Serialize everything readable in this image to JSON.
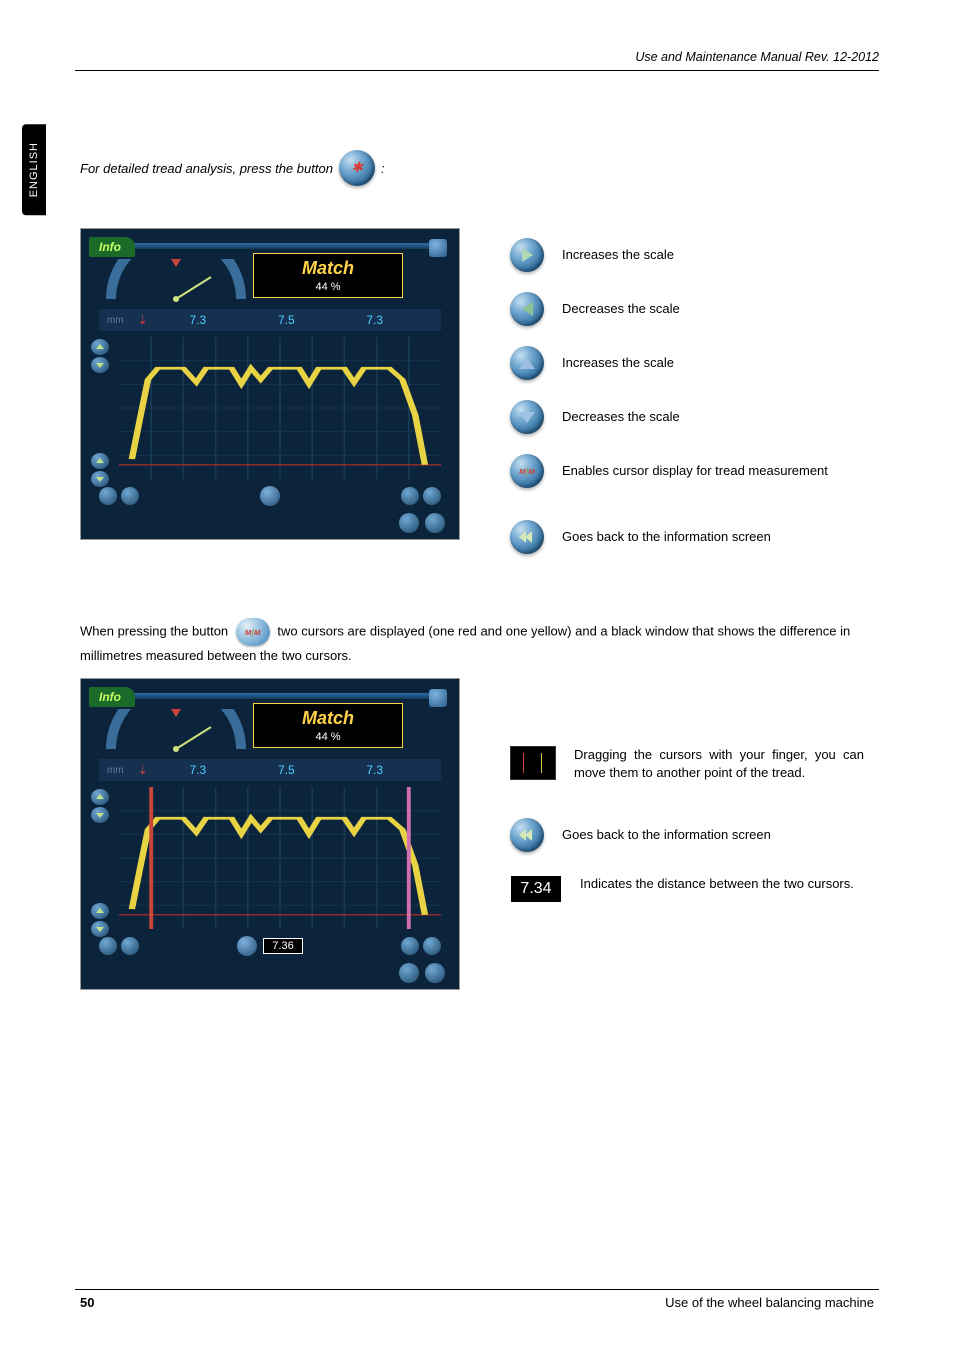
{
  "header": {
    "title": "Use and Maintenance Manual Rev. 12-2012"
  },
  "lang_tab": "ENGLISH",
  "intro": {
    "prefix": "For detailed tread analysis, press the button",
    "suffix": ":"
  },
  "screenshots": {
    "info_tab": "Info",
    "match_label": "Match",
    "match_value": "44 %",
    "mm_label": "mm",
    "measurements": [
      "7.3",
      "7.5",
      "7.3"
    ],
    "cursor_distance": "7.36",
    "chart": {
      "type": "line",
      "background": "#0c243b",
      "grid_color": "#173a57",
      "y_red_line": 0.1,
      "tread_series": {
        "color": "#e8d344",
        "width": 2,
        "points": [
          [
            0.04,
            0.86
          ],
          [
            0.07,
            0.52
          ],
          [
            0.09,
            0.3
          ],
          [
            0.12,
            0.22
          ],
          [
            0.2,
            0.22
          ],
          [
            0.24,
            0.32
          ],
          [
            0.27,
            0.22
          ],
          [
            0.35,
            0.22
          ],
          [
            0.38,
            0.33
          ],
          [
            0.41,
            0.22
          ],
          [
            0.44,
            0.3
          ],
          [
            0.47,
            0.22
          ],
          [
            0.56,
            0.22
          ],
          [
            0.59,
            0.33
          ],
          [
            0.62,
            0.22
          ],
          [
            0.7,
            0.22
          ],
          [
            0.73,
            0.32
          ],
          [
            0.76,
            0.22
          ],
          [
            0.84,
            0.22
          ],
          [
            0.88,
            0.3
          ],
          [
            0.92,
            0.55
          ],
          [
            0.95,
            0.9
          ]
        ]
      },
      "cursors": {
        "red": {
          "x": 0.1,
          "color": "#c9453a"
        },
        "yellow": {
          "x": 0.9,
          "color": "#d26fb0"
        }
      }
    }
  },
  "button_legend": [
    {
      "key": "increase_scale_h",
      "icon": "arrow-right",
      "text": "Increases the scale"
    },
    {
      "key": "decrease_scale_h",
      "icon": "arrow-left",
      "text": "Decreases the scale"
    },
    {
      "key": "increase_scale_v",
      "icon": "arrow-up",
      "text": "Increases the scale"
    },
    {
      "key": "decrease_scale_v",
      "icon": "arrow-down",
      "text": "Decreases the scale"
    },
    {
      "key": "cursor_mode",
      "icon": "mm-cursor",
      "text": "Enables cursor display for tread measurement"
    },
    {
      "key": "back",
      "icon": "dbl-back",
      "text": "Goes back to the information screen"
    }
  ],
  "cursor_para": {
    "prefix": "When pressing the button",
    "suffix": "two cursors are displayed (one red and one yellow) and a black window that shows the difference in millimetres measured between the two cursors."
  },
  "cursor_legend": {
    "drag": "Dragging the cursors with your finger, you can move them to another point of the tread.",
    "back": "Goes back to the information screen",
    "dist_value": "7.34",
    "dist": "Indicates the distance between the two cursors."
  },
  "footer": {
    "page": "50",
    "section": "Use of the wheel balancing machine"
  },
  "colors": {
    "button_gradient_light": "#c5def0",
    "button_gradient_mid": "#6ea6cf",
    "button_gradient_dark": "#134164",
    "match_border": "#ffd24a",
    "meas_text": "#49d0ff"
  }
}
